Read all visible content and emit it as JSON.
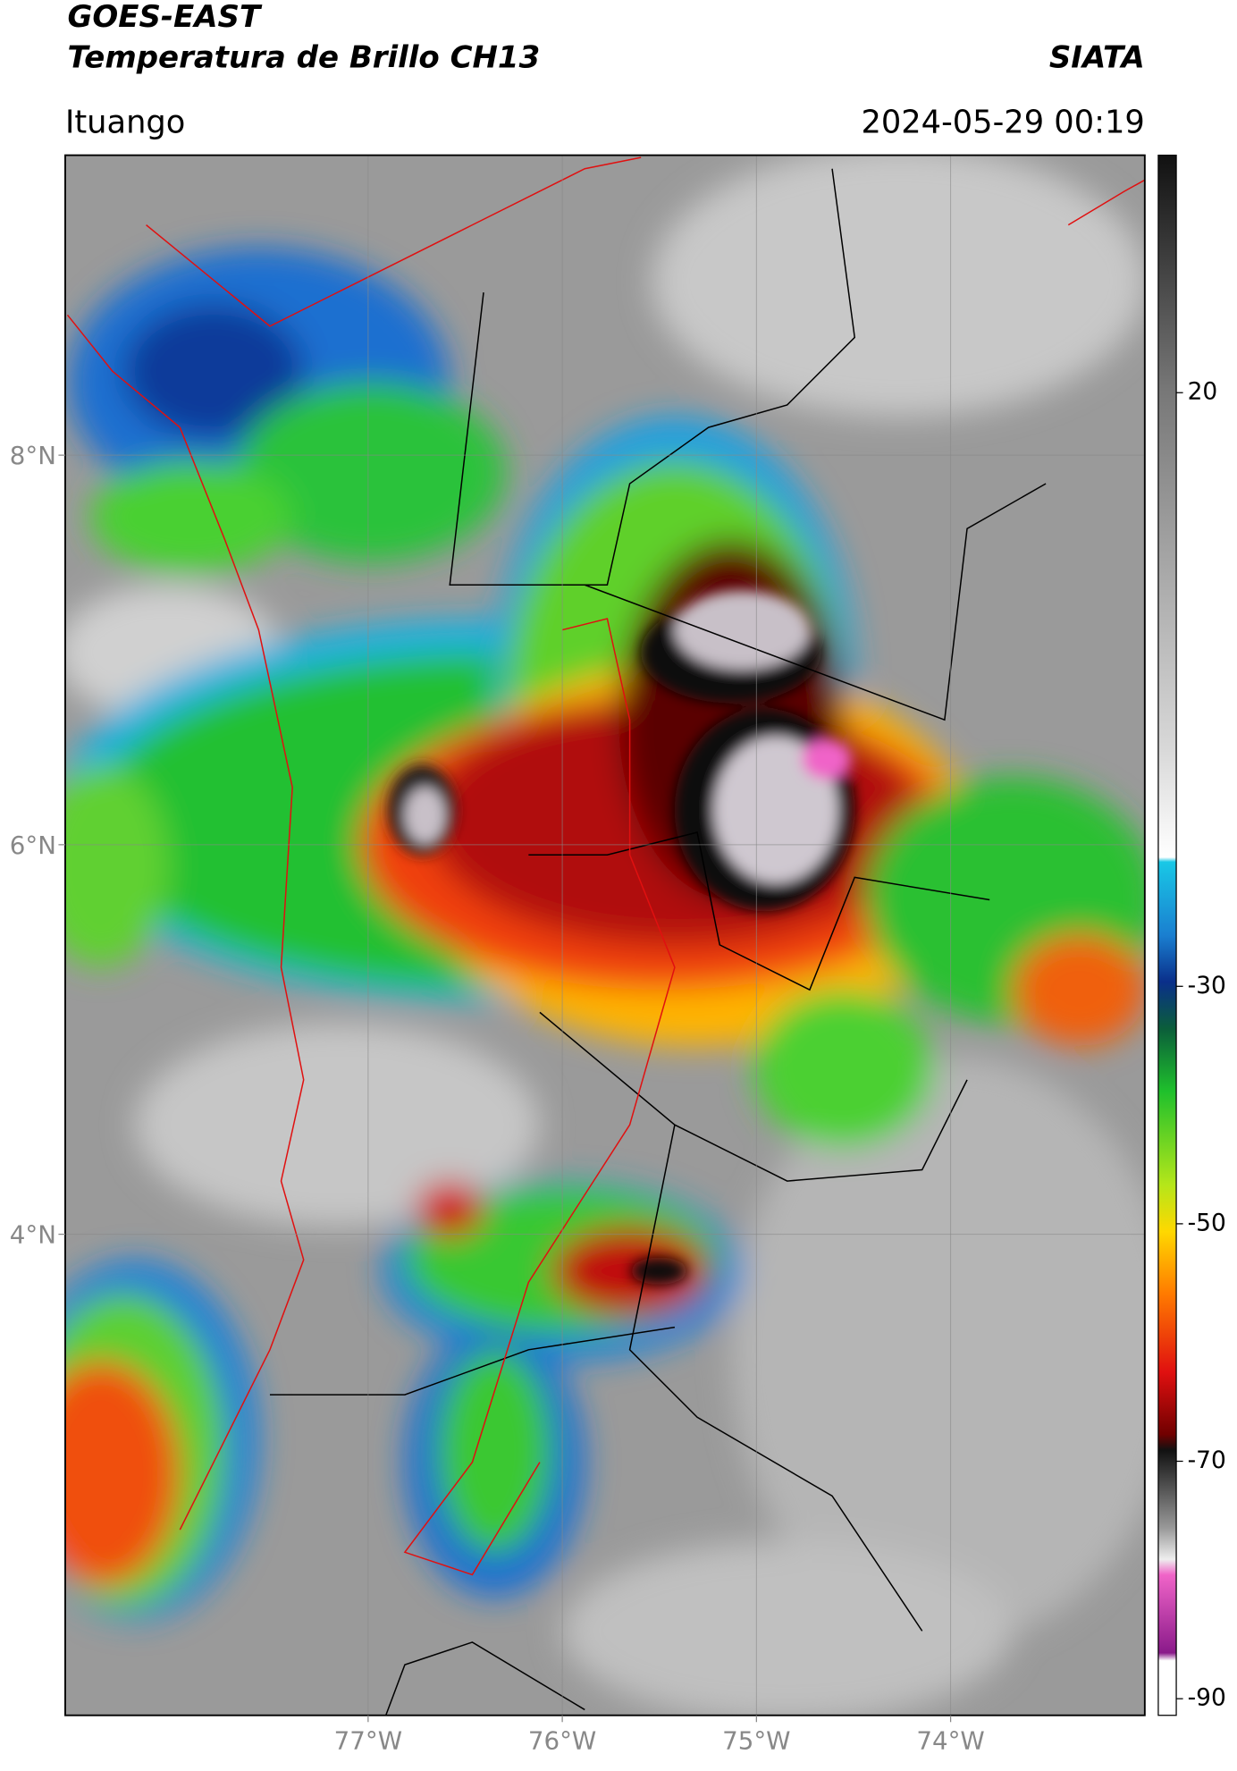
{
  "header": {
    "title": "GOES-EAST",
    "subtitle": "Temperatura de Brillo CH13",
    "source": "SIATA",
    "region": "Ituango",
    "datetime": "2024-05-29 00:19"
  },
  "map": {
    "xlim": [
      -78.56,
      -73.0
    ],
    "ylim": [
      1.53,
      9.54
    ],
    "xticks": [
      {
        "value": -77,
        "label": "77°W"
      },
      {
        "value": -76,
        "label": "76°W"
      },
      {
        "value": -75,
        "label": "75°W"
      },
      {
        "value": -74,
        "label": "74°W"
      }
    ],
    "yticks": [
      {
        "value": 8,
        "label": "8°N"
      },
      {
        "value": 6,
        "label": "6°N"
      },
      {
        "value": 4,
        "label": "4°N"
      }
    ],
    "grid": true
  },
  "colorbar": {
    "lim": [
      -91.4,
      40
    ],
    "ticks": [
      20,
      -30,
      -50,
      -70,
      -90
    ]
  }
}
